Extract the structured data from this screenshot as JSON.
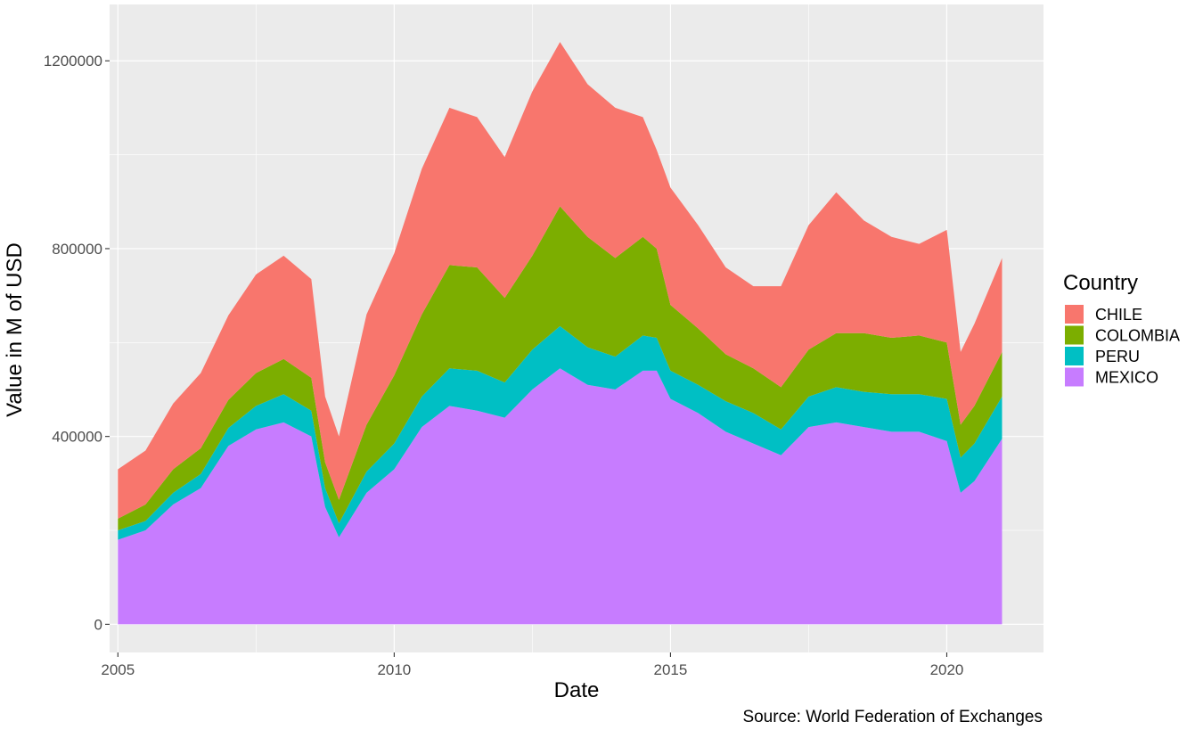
{
  "chart_data": {
    "type": "area",
    "stacked": true,
    "xlabel": "Date",
    "ylabel": "Value in M of USD",
    "caption": "Source: World Federation of Exchanges",
    "xlim": [
      2004.85,
      2021.75
    ],
    "ylim": [
      -60000,
      1320000
    ],
    "x_ticks": [
      2005,
      2010,
      2015,
      2020
    ],
    "y_ticks": [
      0,
      400000,
      800000,
      1200000
    ],
    "y_tick_labels": [
      "0",
      "400000",
      "800000",
      "1200000"
    ],
    "grid": true,
    "legend": {
      "title": "Country",
      "position": "right"
    },
    "x": [
      2005.0,
      2005.5,
      2006.0,
      2006.5,
      2007.0,
      2007.5,
      2008.0,
      2008.5,
      2008.75,
      2009.0,
      2009.5,
      2010.0,
      2010.5,
      2011.0,
      2011.5,
      2012.0,
      2012.5,
      2013.0,
      2013.5,
      2014.0,
      2014.5,
      2014.75,
      2015.0,
      2015.5,
      2016.0,
      2016.5,
      2017.0,
      2017.5,
      2018.0,
      2018.5,
      2019.0,
      2019.5,
      2020.0,
      2020.25,
      2020.5,
      2021.0
    ],
    "series": [
      {
        "name": "MEXICO",
        "color": "#C77CFF",
        "values": [
          180000,
          200000,
          255000,
          290000,
          380000,
          415000,
          430000,
          400000,
          250000,
          185000,
          280000,
          330000,
          420000,
          465000,
          455000,
          440000,
          500000,
          545000,
          510000,
          500000,
          540000,
          540000,
          480000,
          450000,
          410000,
          385000,
          360000,
          420000,
          430000,
          420000,
          410000,
          410000,
          390000,
          280000,
          305000,
          395000
        ]
      },
      {
        "name": "PERU",
        "color": "#00BFC4",
        "values": [
          20000,
          20000,
          25000,
          30000,
          38000,
          50000,
          60000,
          55000,
          40000,
          30000,
          45000,
          55000,
          65000,
          80000,
          85000,
          75000,
          85000,
          90000,
          80000,
          70000,
          75000,
          70000,
          60000,
          60000,
          65000,
          65000,
          55000,
          65000,
          75000,
          75000,
          80000,
          80000,
          90000,
          75000,
          80000,
          90000
        ]
      },
      {
        "name": "COLOMBIA",
        "color": "#7CAE00",
        "values": [
          25000,
          35000,
          50000,
          55000,
          60000,
          70000,
          75000,
          70000,
          55000,
          50000,
          100000,
          145000,
          175000,
          220000,
          220000,
          180000,
          200000,
          255000,
          235000,
          210000,
          210000,
          190000,
          140000,
          120000,
          100000,
          95000,
          90000,
          100000,
          115000,
          125000,
          120000,
          125000,
          120000,
          70000,
          80000,
          95000
        ]
      },
      {
        "name": "CHILE",
        "color": "#F8766D",
        "values": [
          105000,
          115000,
          140000,
          160000,
          180000,
          210000,
          220000,
          210000,
          140000,
          135000,
          235000,
          260000,
          310000,
          335000,
          320000,
          300000,
          350000,
          350000,
          325000,
          320000,
          255000,
          210000,
          250000,
          220000,
          185000,
          175000,
          215000,
          265000,
          300000,
          240000,
          215000,
          195000,
          240000,
          155000,
          175000,
          200000
        ]
      }
    ]
  }
}
